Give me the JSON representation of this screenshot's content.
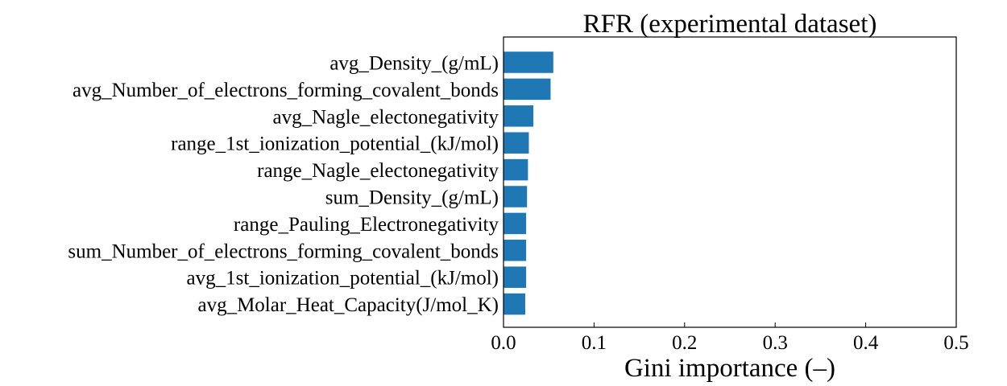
{
  "chart_data": {
    "type": "bar",
    "orientation": "horizontal",
    "title": "RFR (experimental dataset)",
    "xlabel": "Gini importance (–)",
    "ylabel": "",
    "xlim": [
      0,
      0.5
    ],
    "xticks": [
      "0.0",
      "0.1",
      "0.2",
      "0.3",
      "0.4",
      "0.5"
    ],
    "grid": false,
    "bar_color": "#1f77b4",
    "categories": [
      "avg_Density_(g/mL)",
      "avg_Number_of_electrons_forming_covalent_bonds",
      "avg_Nagle_electonegativity",
      "range_1st_ionization_potential_(kJ/mol)",
      "range_Nagle_electonegativity",
      "sum_Density_(g/mL)",
      "range_Pauling_Electronegativity",
      "sum_Number_of_electrons_forming_covalent_bonds",
      "avg_1st_ionization_potential_(kJ/mol)",
      "avg_Molar_Heat_Capacity(J/mol_K)"
    ],
    "values": [
      0.055,
      0.052,
      0.033,
      0.028,
      0.027,
      0.026,
      0.025,
      0.025,
      0.025,
      0.024
    ]
  }
}
